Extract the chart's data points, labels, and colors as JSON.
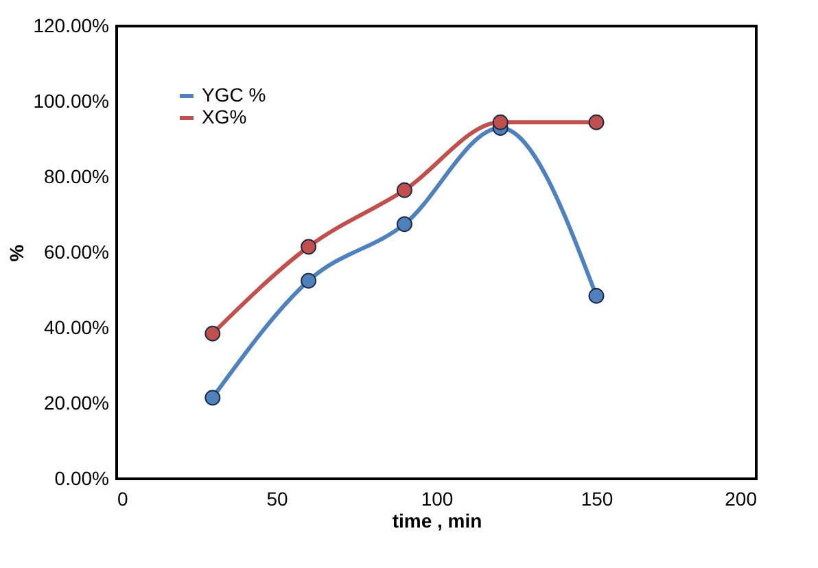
{
  "chart_data": {
    "type": "line",
    "xlabel": "time , min",
    "ylabel": "%",
    "x": [
      30,
      60,
      90,
      120,
      150
    ],
    "series": [
      {
        "name": "YGC %",
        "color": "#4f81bd",
        "values": [
          21.5,
          52.5,
          67.5,
          93,
          48.5
        ]
      },
      {
        "name": "XG%",
        "color": "#c0504d",
        "values": [
          38.5,
          61.5,
          76.5,
          94.5,
          94.5
        ]
      }
    ],
    "xlim": [
      0,
      200
    ],
    "xticks": [
      0,
      50,
      100,
      150,
      200
    ],
    "ylim": [
      0,
      120
    ],
    "yticks": [
      {
        "value": 0,
        "label": "0.00%"
      },
      {
        "value": 20,
        "label": "20.00%"
      },
      {
        "value": 40,
        "label": "40.00%"
      },
      {
        "value": 60,
        "label": "60.00%"
      },
      {
        "value": 80,
        "label": "80.00%"
      },
      {
        "value": 100,
        "label": "100.00%"
      },
      {
        "value": 120,
        "label": "120.00%"
      }
    ],
    "grid": false,
    "legend": "top left",
    "marker": "circle",
    "line_style": "solid"
  }
}
